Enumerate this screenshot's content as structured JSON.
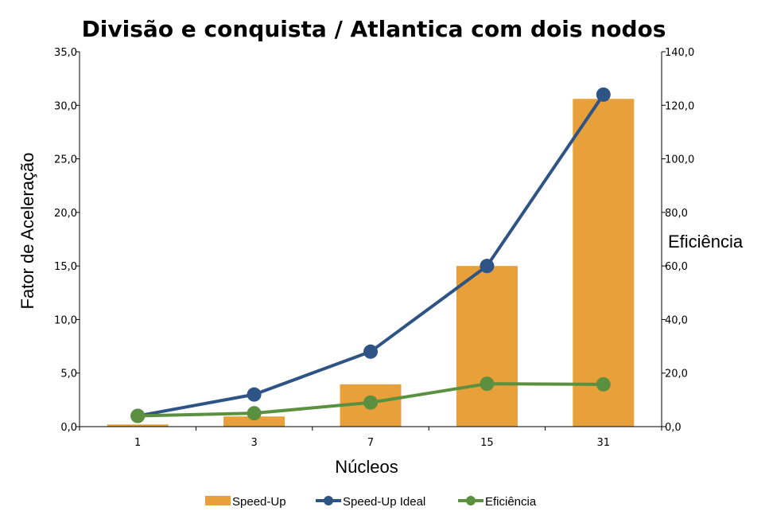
{
  "chart_data": {
    "type": "bar",
    "title": "Divisão e conquista / Atlantica com dois nodos",
    "xlabel": "Núcleos",
    "ylabel": "Fator de Aceleração",
    "y2label": "Eficiência",
    "categories": [
      "1",
      "3",
      "7",
      "15",
      "31"
    ],
    "ylim": [
      0,
      35
    ],
    "y_ticks": [
      "0,0",
      "5,0",
      "10,0",
      "15,0",
      "20,0",
      "25,0",
      "30,0",
      "35,0"
    ],
    "y2lim": [
      0,
      140
    ],
    "y2_ticks": [
      "0,0",
      "20,0",
      "40,0",
      "60,0",
      "80,0",
      "100,0",
      "120,0",
      "140,0"
    ],
    "grid": false,
    "legend_position": "bottom",
    "series": [
      {
        "name": "Speed-Up",
        "kind": "bar",
        "axis": "left",
        "color": "#E8A03A",
        "values": [
          0.2,
          0.95,
          3.95,
          15.0,
          30.6
        ]
      },
      {
        "name": "Speed-Up Ideal",
        "kind": "line",
        "axis": "left",
        "color": "#2E5385",
        "values": [
          1,
          3,
          7,
          15,
          31
        ]
      },
      {
        "name": "Eficiência",
        "kind": "line",
        "axis": "right",
        "color": "#5B9040",
        "values": [
          4,
          5,
          9,
          16,
          15.8
        ]
      }
    ]
  }
}
